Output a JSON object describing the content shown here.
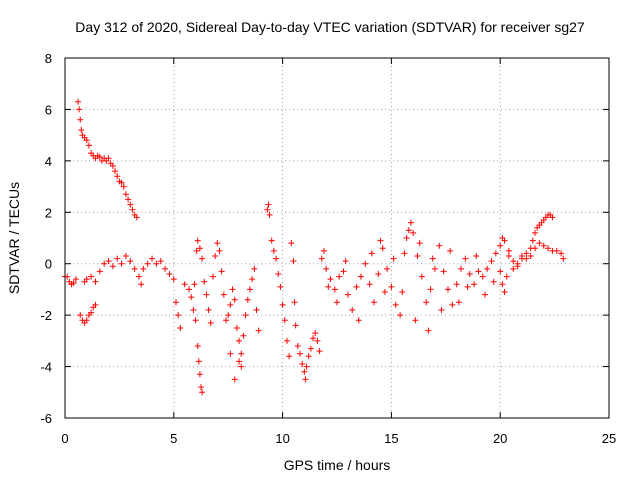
{
  "chart_data": {
    "type": "scatter",
    "title": "Day 312 of 2020, Sidereal Day-to-day VTEC variation (SDTVAR) for receiver sg27",
    "xlabel": "GPS time / hours",
    "ylabel": "SDTVAR / TECUs",
    "xlim": [
      0,
      25
    ],
    "ylim": [
      -6,
      8
    ],
    "x_ticks": [
      0,
      5,
      10,
      15,
      20,
      25
    ],
    "y_ticks": [
      -6,
      -4,
      -2,
      0,
      2,
      4,
      6,
      8
    ],
    "x_tick_labels": [
      "0",
      "5",
      "10",
      "15",
      "20",
      "25"
    ],
    "y_tick_labels": [
      "-6",
      "-4",
      "-2",
      "0",
      "2",
      "4",
      "6",
      "8"
    ],
    "grid": true,
    "marker": "+",
    "marker_color": "#ff0000",
    "series": [
      {
        "name": "sg27",
        "points": [
          [
            0.0,
            -0.5
          ],
          [
            0.1,
            -0.5
          ],
          [
            0.2,
            -0.7
          ],
          [
            0.3,
            -0.8
          ],
          [
            0.4,
            -0.75
          ],
          [
            0.5,
            -0.6
          ],
          [
            0.6,
            6.3
          ],
          [
            0.65,
            6.0
          ],
          [
            0.7,
            5.6
          ],
          [
            0.75,
            5.2
          ],
          [
            0.8,
            5.0
          ],
          [
            0.9,
            4.9
          ],
          [
            1.0,
            4.8
          ],
          [
            1.1,
            4.6
          ],
          [
            1.2,
            4.3
          ],
          [
            1.3,
            4.2
          ],
          [
            1.4,
            4.1
          ],
          [
            1.5,
            4.2
          ],
          [
            1.6,
            4.15
          ],
          [
            1.7,
            4.0
          ],
          [
            1.8,
            4.1
          ],
          [
            1.9,
            4.0
          ],
          [
            2.0,
            4.1
          ],
          [
            2.1,
            3.9
          ],
          [
            2.2,
            3.8
          ],
          [
            2.3,
            3.6
          ],
          [
            2.4,
            3.4
          ],
          [
            2.5,
            3.2
          ],
          [
            2.6,
            3.15
          ],
          [
            2.7,
            3.0
          ],
          [
            2.8,
            2.7
          ],
          [
            2.9,
            2.5
          ],
          [
            3.0,
            2.3
          ],
          [
            3.1,
            2.1
          ],
          [
            3.2,
            1.9
          ],
          [
            3.3,
            1.8
          ],
          [
            0.7,
            -2.0
          ],
          [
            0.8,
            -2.2
          ],
          [
            0.9,
            -2.3
          ],
          [
            1.0,
            -2.2
          ],
          [
            1.1,
            -2.0
          ],
          [
            1.2,
            -1.9
          ],
          [
            1.3,
            -1.7
          ],
          [
            1.4,
            -1.6
          ],
          [
            0.9,
            -0.7
          ],
          [
            1.0,
            -0.6
          ],
          [
            1.2,
            -0.5
          ],
          [
            1.4,
            -0.7
          ],
          [
            1.6,
            -0.3
          ],
          [
            1.8,
            0.0
          ],
          [
            2.0,
            0.1
          ],
          [
            2.2,
            -0.1
          ],
          [
            2.4,
            0.2
          ],
          [
            2.6,
            0.0
          ],
          [
            2.8,
            0.3
          ],
          [
            3.0,
            0.1
          ],
          [
            3.2,
            -0.2
          ],
          [
            3.4,
            -0.5
          ],
          [
            3.5,
            -0.8
          ],
          [
            3.6,
            -0.2
          ],
          [
            3.8,
            0.0
          ],
          [
            4.0,
            0.2
          ],
          [
            4.2,
            0.0
          ],
          [
            4.4,
            0.1
          ],
          [
            4.6,
            -0.2
          ],
          [
            4.8,
            -0.4
          ],
          [
            5.0,
            -0.6
          ],
          [
            5.1,
            -1.5
          ],
          [
            5.2,
            -2.0
          ],
          [
            5.3,
            -2.5
          ],
          [
            5.5,
            -0.8
          ],
          [
            5.7,
            -1.0
          ],
          [
            5.8,
            -1.3
          ],
          [
            5.9,
            -1.8
          ],
          [
            6.0,
            -2.2
          ],
          [
            6.1,
            -3.2
          ],
          [
            6.15,
            -3.8
          ],
          [
            6.2,
            -4.3
          ],
          [
            6.25,
            -4.8
          ],
          [
            6.3,
            -5.0
          ],
          [
            5.95,
            -0.8
          ],
          [
            6.05,
            0.5
          ],
          [
            6.1,
            0.9
          ],
          [
            6.2,
            0.6
          ],
          [
            6.3,
            0.2
          ],
          [
            6.4,
            -0.7
          ],
          [
            6.5,
            -1.2
          ],
          [
            6.6,
            -1.8
          ],
          [
            6.7,
            -2.3
          ],
          [
            6.8,
            -0.5
          ],
          [
            6.9,
            0.3
          ],
          [
            7.0,
            0.8
          ],
          [
            7.1,
            0.5
          ],
          [
            7.2,
            -0.3
          ],
          [
            7.3,
            -1.2
          ],
          [
            7.4,
            -2.2
          ],
          [
            7.5,
            -2.0
          ],
          [
            7.6,
            -1.6
          ],
          [
            7.7,
            -1.0
          ],
          [
            7.8,
            -1.4
          ],
          [
            7.9,
            -2.5
          ],
          [
            8.0,
            -3.0
          ],
          [
            8.1,
            -3.5
          ],
          [
            8.2,
            -2.8
          ],
          [
            8.3,
            -2.0
          ],
          [
            8.4,
            -1.4
          ],
          [
            8.5,
            -1.0
          ],
          [
            8.6,
            -0.6
          ],
          [
            8.7,
            -0.2
          ],
          [
            8.8,
            -1.8
          ],
          [
            8.9,
            -2.6
          ],
          [
            7.6,
            -3.5
          ],
          [
            7.8,
            -4.5
          ],
          [
            8.0,
            -3.8
          ],
          [
            8.1,
            -4.0
          ],
          [
            9.3,
            2.1
          ],
          [
            9.35,
            2.3
          ],
          [
            9.4,
            1.9
          ],
          [
            9.5,
            0.9
          ],
          [
            9.6,
            0.5
          ],
          [
            9.7,
            0.2
          ],
          [
            9.8,
            -0.4
          ],
          [
            9.9,
            -0.9
          ],
          [
            10.0,
            -1.6
          ],
          [
            10.1,
            -2.2
          ],
          [
            10.2,
            -3.0
          ],
          [
            10.3,
            -3.6
          ],
          [
            10.4,
            0.8
          ],
          [
            10.5,
            0.1
          ],
          [
            10.55,
            -1.5
          ],
          [
            10.6,
            -2.4
          ],
          [
            10.7,
            -3.2
          ],
          [
            10.8,
            -3.5
          ],
          [
            10.9,
            -3.9
          ],
          [
            11.0,
            -4.2
          ],
          [
            11.05,
            -4.5
          ],
          [
            11.1,
            -4.0
          ],
          [
            11.2,
            -3.6
          ],
          [
            11.3,
            -3.3
          ],
          [
            11.4,
            -2.9
          ],
          [
            11.5,
            -2.7
          ],
          [
            11.6,
            -3.0
          ],
          [
            11.7,
            -3.4
          ],
          [
            11.8,
            0.2
          ],
          [
            11.9,
            0.5
          ],
          [
            12.0,
            -0.2
          ],
          [
            12.2,
            -0.6
          ],
          [
            12.4,
            -1.0
          ],
          [
            12.6,
            -0.5
          ],
          [
            12.8,
            -0.3
          ],
          [
            13.0,
            -1.2
          ],
          [
            13.2,
            -1.8
          ],
          [
            13.4,
            -0.9
          ],
          [
            13.6,
            -0.5
          ],
          [
            13.8,
            0.0
          ],
          [
            14.0,
            -0.8
          ],
          [
            14.2,
            -1.5
          ],
          [
            14.4,
            -0.4
          ],
          [
            14.5,
            0.9
          ],
          [
            14.6,
            0.6
          ],
          [
            14.8,
            -0.2
          ],
          [
            15.0,
            -0.9
          ],
          [
            15.2,
            -1.6
          ],
          [
            15.4,
            -2.0
          ],
          [
            15.6,
            0.4
          ],
          [
            15.7,
            1.0
          ],
          [
            15.8,
            1.3
          ],
          [
            15.9,
            1.6
          ],
          [
            16.0,
            1.2
          ],
          [
            16.2,
            0.3
          ],
          [
            16.4,
            -0.5
          ],
          [
            16.6,
            -1.5
          ],
          [
            16.8,
            -1.0
          ],
          [
            17.0,
            -0.2
          ],
          [
            17.2,
            0.7
          ],
          [
            17.4,
            -0.3
          ],
          [
            17.6,
            -1.0
          ],
          [
            17.8,
            -1.6
          ],
          [
            18.0,
            -0.8
          ],
          [
            18.2,
            -0.2
          ],
          [
            18.4,
            0.2
          ],
          [
            18.6,
            -0.4
          ],
          [
            18.8,
            -0.8
          ],
          [
            19.0,
            -0.3
          ],
          [
            19.2,
            -0.5
          ],
          [
            19.4,
            -0.2
          ],
          [
            19.6,
            0.1
          ],
          [
            19.8,
            0.4
          ],
          [
            20.0,
            -0.3
          ],
          [
            20.1,
            -0.8
          ],
          [
            20.2,
            -1.1
          ],
          [
            20.3,
            -0.5
          ],
          [
            12.1,
            -0.9
          ],
          [
            12.5,
            -1.5
          ],
          [
            12.9,
            0.1
          ],
          [
            13.5,
            -2.2
          ],
          [
            14.1,
            0.4
          ],
          [
            14.7,
            -1.1
          ],
          [
            15.1,
            0.2
          ],
          [
            15.5,
            -1.1
          ],
          [
            16.1,
            -2.2
          ],
          [
            16.3,
            0.8
          ],
          [
            16.7,
            -2.6
          ],
          [
            16.9,
            0.2
          ],
          [
            17.3,
            -1.8
          ],
          [
            17.7,
            0.5
          ],
          [
            18.1,
            -1.5
          ],
          [
            18.5,
            -0.9
          ],
          [
            18.9,
            0.3
          ],
          [
            19.3,
            -1.2
          ],
          [
            19.7,
            -0.7
          ],
          [
            20.4,
            0.3
          ],
          [
            20.6,
            0.1
          ],
          [
            20.8,
            -0.1
          ],
          [
            21.0,
            0.2
          ],
          [
            21.2,
            0.4
          ],
          [
            21.4,
            0.3
          ],
          [
            21.6,
            0.6
          ],
          [
            21.8,
            0.8
          ],
          [
            22.0,
            0.7
          ],
          [
            22.2,
            0.6
          ],
          [
            22.4,
            0.5
          ],
          [
            22.6,
            0.5
          ],
          [
            22.8,
            0.4
          ],
          [
            22.9,
            0.2
          ],
          [
            20.0,
            0.7
          ],
          [
            20.1,
            1.0
          ],
          [
            20.2,
            0.9
          ],
          [
            20.4,
            0.5
          ],
          [
            20.6,
            -0.2
          ],
          [
            20.8,
            0.0
          ],
          [
            21.0,
            0.3
          ],
          [
            21.2,
            0.2
          ],
          [
            21.4,
            0.6
          ],
          [
            21.5,
            0.9
          ],
          [
            21.6,
            1.2
          ],
          [
            21.7,
            1.4
          ],
          [
            21.8,
            1.5
          ],
          [
            21.9,
            1.6
          ],
          [
            22.0,
            1.7
          ],
          [
            22.1,
            1.8
          ],
          [
            22.2,
            1.9
          ],
          [
            22.3,
            1.9
          ],
          [
            22.4,
            1.8
          ]
        ]
      }
    ]
  }
}
